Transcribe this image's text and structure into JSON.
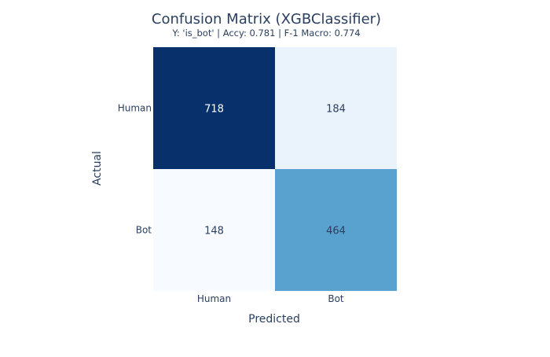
{
  "chart_data": {
    "type": "heatmap",
    "title": "Confusion Matrix (XGBClassifier)",
    "subtitle": "Y: 'is_bot' | Accy: 0.781 | F-1 Macro: 0.774",
    "xlabel": "Predicted",
    "ylabel": "Actual",
    "x_categories": [
      "Human",
      "Bot"
    ],
    "y_categories": [
      "Human",
      "Bot"
    ],
    "values": [
      [
        718,
        184
      ],
      [
        148,
        464
      ]
    ],
    "colorscale": "Blues",
    "colorscale_stops": [
      "#f7fbff",
      "#deebf7",
      "#c6dbef",
      "#9ecae1",
      "#6baed6",
      "#4292c6",
      "#2171b5",
      "#08519c",
      "#08306b"
    ],
    "text_color_dark": "#2a3f5f",
    "text_color_light": "#ffffff"
  }
}
